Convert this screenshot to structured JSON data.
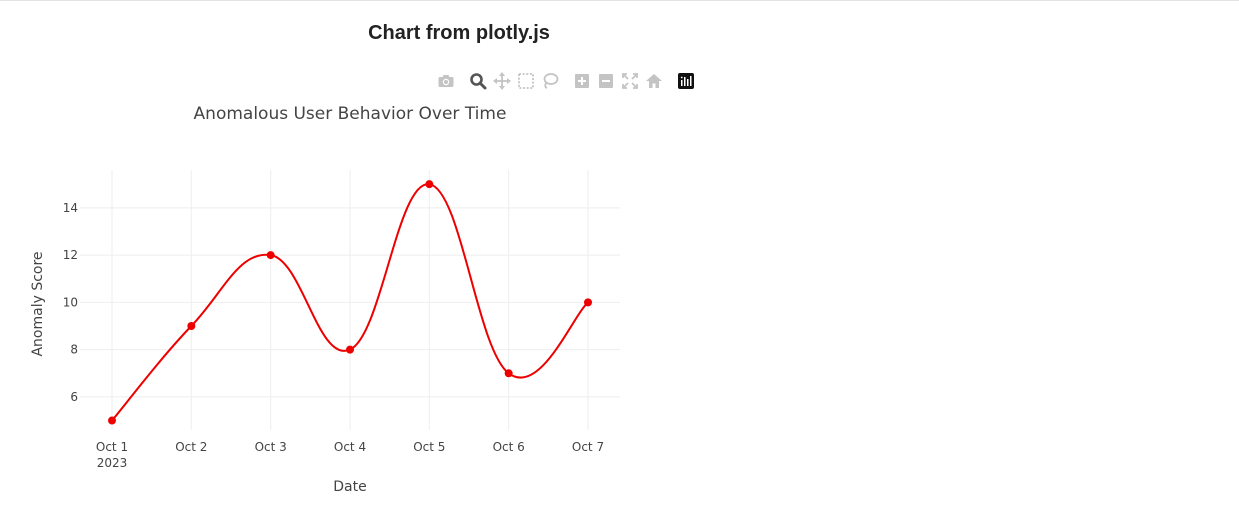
{
  "page": {
    "heading": "Chart from plotly.js"
  },
  "modebar": {
    "buttons": [
      {
        "icon": "camera-icon",
        "label": "Download plot as a png"
      },
      {
        "icon": "zoom-icon",
        "label": "Zoom"
      },
      {
        "icon": "pan-icon",
        "label": "Pan"
      },
      {
        "icon": "box-select-icon",
        "label": "Box Select"
      },
      {
        "icon": "lasso-select-icon",
        "label": "Lasso Select"
      },
      {
        "icon": "zoom-in-icon",
        "label": "Zoom in"
      },
      {
        "icon": "zoom-out-icon",
        "label": "Zoom out"
      },
      {
        "icon": "autoscale-icon",
        "label": "Autoscale"
      },
      {
        "icon": "reset-axes-icon",
        "label": "Reset axes"
      },
      {
        "icon": "plotly-logo-icon",
        "label": "Produced with Plotly"
      }
    ]
  },
  "chart_data": {
    "type": "line",
    "title": "Anomalous User Behavior Over Time",
    "xlabel": "Date",
    "ylabel": "Anomaly Score",
    "x": [
      "2023-10-01",
      "2023-10-02",
      "2023-10-03",
      "2023-10-04",
      "2023-10-05",
      "2023-10-06",
      "2023-10-07"
    ],
    "x_tick_labels": [
      "Oct 1",
      "Oct 2",
      "Oct 3",
      "Oct 4",
      "Oct 5",
      "Oct 6",
      "Oct 7"
    ],
    "x_tick_sublabel": "2023",
    "series": [
      {
        "values": [
          5,
          9,
          12,
          8,
          15,
          7,
          10
        ],
        "color": "#ee0000",
        "line_shape": "spline",
        "mode": "lines+markers"
      }
    ],
    "y_ticks": [
      6,
      8,
      10,
      12,
      14
    ],
    "ylim": [
      4.6,
      15.6
    ],
    "grid": true,
    "legend": "none"
  }
}
